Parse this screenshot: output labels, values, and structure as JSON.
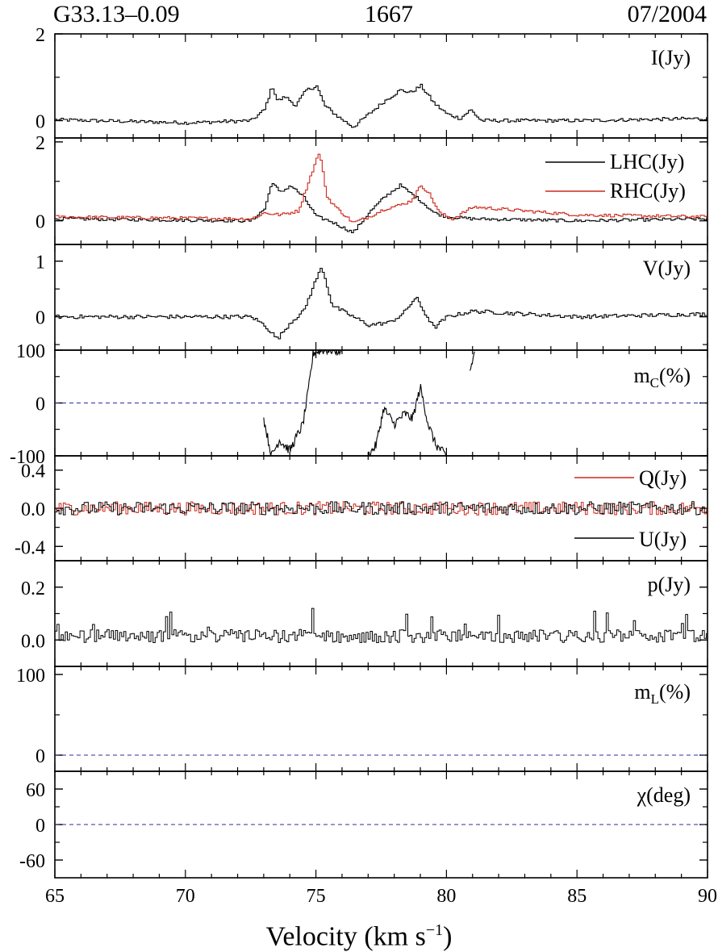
{
  "header": {
    "source": "G33.13–0.09",
    "frequency": "1667",
    "date": "07/2004"
  },
  "xaxis": {
    "label_main": "Velocity (km s",
    "label_sup": "−1",
    "label_close": ")",
    "range": [
      65,
      90
    ],
    "ticks": [
      "65",
      "70",
      "75",
      "80",
      "85",
      "90"
    ]
  },
  "chart_data": [
    {
      "type": "line",
      "panel": "I",
      "label": "I(Jy)",
      "ylim": [
        -0.4,
        2.0
      ],
      "yticks": [
        "2",
        "0"
      ],
      "ytick_values": [
        2,
        0
      ],
      "series": [
        {
          "name": "I(Jy)",
          "color": "#000000",
          "x": [
            65,
            70,
            72.5,
            73,
            73.3,
            73.5,
            73.8,
            74.2,
            74.6,
            75,
            75.3,
            75.8,
            76.4,
            77,
            77.6,
            78.2,
            78.6,
            79,
            79.5,
            80,
            80.5,
            80.9,
            81.3,
            85,
            90
          ],
          "y": [
            0.02,
            -0.05,
            0.0,
            0.25,
            0.8,
            0.45,
            0.55,
            0.35,
            0.7,
            0.8,
            0.35,
            0.1,
            -0.15,
            0.15,
            0.45,
            0.7,
            0.65,
            0.8,
            0.4,
            0.15,
            0.05,
            0.25,
            0.0,
            0.0,
            0.05
          ]
        }
      ]
    },
    {
      "type": "line",
      "panel": "LHC_RHC",
      "ylim": [
        -0.6,
        2.1
      ],
      "yticks": [
        "2",
        "0"
      ],
      "ytick_values": [
        2,
        0
      ],
      "series": [
        {
          "name": "LHC(Jy)",
          "color": "#000000",
          "x": [
            65,
            72.5,
            73,
            73.3,
            73.6,
            74,
            74.5,
            75,
            75.5,
            76.4,
            77,
            77.6,
            78.2,
            78.6,
            79,
            79.5,
            80,
            81,
            85,
            90
          ],
          "y": [
            0.05,
            0.0,
            0.3,
            1.0,
            0.7,
            0.9,
            0.6,
            0.1,
            0.0,
            -0.3,
            0.2,
            0.6,
            0.9,
            0.7,
            0.5,
            0.2,
            0.1,
            0.05,
            0.0,
            0.05
          ]
        },
        {
          "name": "RHC(Jy)",
          "color": "#cc2a1e",
          "x": [
            65,
            72.5,
            73,
            73.6,
            74.3,
            74.8,
            75.1,
            75.4,
            75.8,
            76.4,
            77,
            77.6,
            78.2,
            78.6,
            79,
            79.3,
            79.7,
            80.2,
            81,
            85,
            90
          ],
          "y": [
            0.1,
            0.05,
            0.2,
            0.15,
            0.25,
            1.2,
            1.75,
            0.6,
            0.3,
            -0.05,
            0.1,
            0.3,
            0.4,
            0.5,
            0.9,
            0.7,
            0.2,
            0.05,
            0.35,
            0.15,
            0.1
          ]
        }
      ]
    },
    {
      "type": "line",
      "panel": "V",
      "label": "V(Jy)",
      "ylim": [
        -0.6,
        1.3
      ],
      "yticks": [
        "1",
        "0"
      ],
      "ytick_values": [
        1,
        0
      ],
      "series": [
        {
          "name": "V(Jy)",
          "color": "#000000",
          "x": [
            65,
            72.5,
            73,
            73.5,
            74,
            74.5,
            75,
            75.2,
            75.6,
            76.2,
            77,
            77.8,
            78.3,
            78.8,
            79.1,
            79.5,
            80,
            81,
            85,
            90
          ],
          "y": [
            0.0,
            0.0,
            -0.15,
            -0.4,
            -0.1,
            0.1,
            0.7,
            0.9,
            0.2,
            0.05,
            -0.15,
            -0.1,
            0.05,
            0.35,
            0.1,
            -0.2,
            0.0,
            0.1,
            0.0,
            0.05
          ]
        }
      ]
    },
    {
      "type": "line",
      "panel": "mc",
      "label_main": "m",
      "label_sub": "C",
      "label_tail": "(%)",
      "ylim": [
        -100,
        100
      ],
      "zero_line": true,
      "yticks": [
        "100",
        "0",
        "-100"
      ],
      "ytick_values": [
        100,
        0,
        -100
      ],
      "segments": [
        {
          "x": [
            73.0,
            73.3,
            73.6,
            74.0,
            74.3,
            74.5,
            74.7,
            74.9,
            75.2,
            75.6,
            76.0
          ],
          "y": [
            -30,
            -100,
            -70,
            -90,
            -60,
            -40,
            20,
            95,
            100,
            100,
            98
          ]
        },
        {
          "x": [
            77.0,
            77.3,
            77.6,
            78.0,
            78.4,
            78.7,
            79.0,
            79.3,
            79.6,
            80.0
          ],
          "y": [
            -100,
            -80,
            -10,
            -40,
            -20,
            -30,
            30,
            -40,
            -80,
            -100
          ]
        },
        {
          "x": [
            80.9,
            81.1
          ],
          "y": [
            60,
            100
          ]
        }
      ]
    },
    {
      "type": "line",
      "panel": "QU",
      "ylim": [
        -0.55,
        0.55
      ],
      "yticks": [
        "0.4",
        "0.0",
        "-0.4"
      ],
      "ytick_values": [
        0.4,
        0.0,
        -0.4
      ],
      "series": [
        {
          "name": "Q(Jy)",
          "color": "#cc2a1e",
          "noise": 0.07
        },
        {
          "name": "U(Jy)",
          "color": "#000000",
          "noise": 0.07
        }
      ]
    },
    {
      "type": "line",
      "panel": "p",
      "label": "p(Jy)",
      "ylim": [
        -0.1,
        0.3
      ],
      "yticks": [
        "0.2",
        "0.0"
      ],
      "ytick_values": [
        0.2,
        0.0
      ],
      "series": [
        {
          "name": "p(Jy)",
          "color": "#000000",
          "noise": 0.05
        }
      ]
    },
    {
      "type": "line",
      "panel": "mL",
      "label_main": "m",
      "label_sub": "L",
      "label_tail": "(%)",
      "ylim": [
        -20,
        110
      ],
      "zero_line": true,
      "yticks": [
        "100",
        "0"
      ],
      "ytick_values": [
        100,
        0
      ]
    },
    {
      "type": "line",
      "panel": "chi",
      "label": "χ(deg)",
      "ylim": [
        -90,
        90
      ],
      "zero_line": true,
      "yticks": [
        "60",
        "0",
        "-60"
      ],
      "ytick_values": [
        60,
        0,
        -60
      ]
    }
  ]
}
